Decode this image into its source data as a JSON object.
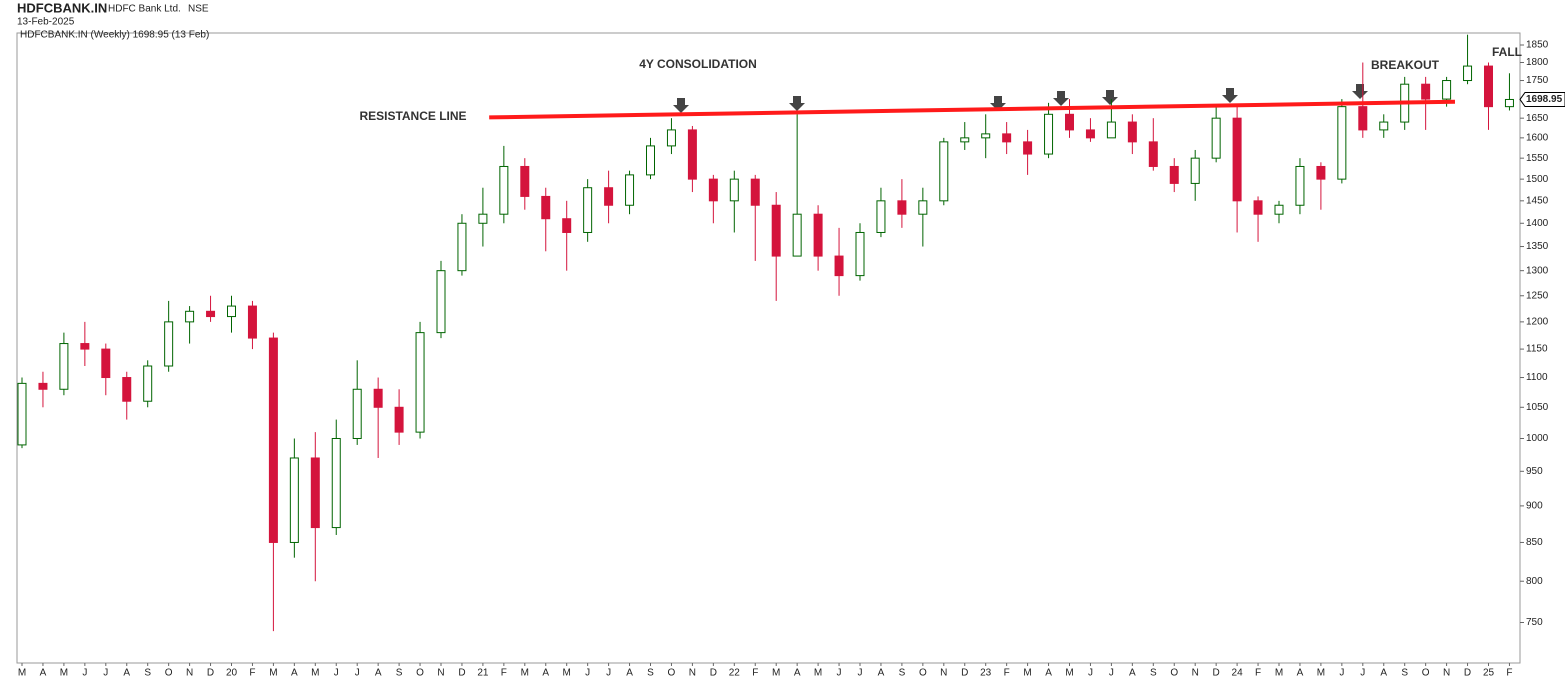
{
  "chart_data": {
    "type": "candlestick",
    "title": "HDFCBANK.IN",
    "company": "HDFC Bank Ltd.",
    "exchange": "NSE",
    "date": "13-Feb-2025",
    "legend": "HDFCBANK.IN (Weekly) 1698.95 (13 Feb)",
    "annotations": [
      "4Y CONSOLIDATION",
      "RESISTANCE LINE",
      "BREAKOUT",
      "FALL"
    ],
    "categories": [
      "M",
      "A",
      "M",
      "J",
      "J",
      "A",
      "S",
      "O",
      "N",
      "D",
      "20",
      "F",
      "M",
      "A",
      "M",
      "J",
      "J",
      "A",
      "S",
      "O",
      "N",
      "D",
      "21",
      "F",
      "M",
      "A",
      "M",
      "J",
      "J",
      "A",
      "S",
      "O",
      "N",
      "D",
      "22",
      "F",
      "M",
      "A",
      "M",
      "J",
      "J",
      "A",
      "S",
      "O",
      "N",
      "D",
      "23",
      "F",
      "M",
      "A",
      "M",
      "J",
      "J",
      "A",
      "S",
      "O",
      "N",
      "D",
      "24",
      "F",
      "M",
      "A",
      "M",
      "J",
      "J",
      "A",
      "S",
      "O",
      "N",
      "D",
      "25",
      "F"
    ],
    "series": {
      "up_color": "#006400",
      "down_color": "#d4143c",
      "open": [
        990,
        1090,
        1080,
        1160,
        1150,
        1100,
        1060,
        1120,
        1200,
        1220,
        1210,
        1230,
        1170,
        850,
        970,
        870,
        1000,
        1080,
        1050,
        1010,
        1180,
        1300,
        1400,
        1420,
        1530,
        1460,
        1410,
        1380,
        1480,
        1440,
        1510,
        1580,
        1620,
        1500,
        1450,
        1500,
        1440,
        1330,
        1420,
        1330,
        1290,
        1380,
        1450,
        1420,
        1450,
        1590,
        1600,
        1610,
        1590,
        1560,
        1660,
        1620,
        1600,
        1640,
        1590,
        1530,
        1490,
        1550,
        1650,
        1450,
        1420,
        1440,
        1530,
        1500,
        1680,
        1620,
        1640,
        1740,
        1700,
        1750,
        1790,
        1680
      ],
      "high": [
        1100,
        1110,
        1180,
        1200,
        1160,
        1110,
        1130,
        1240,
        1230,
        1250,
        1250,
        1240,
        1180,
        1000,
        1010,
        1030,
        1130,
        1100,
        1080,
        1200,
        1320,
        1420,
        1480,
        1580,
        1550,
        1480,
        1450,
        1500,
        1520,
        1520,
        1600,
        1650,
        1630,
        1510,
        1520,
        1510,
        1470,
        1660,
        1440,
        1390,
        1400,
        1480,
        1500,
        1480,
        1600,
        1640,
        1660,
        1640,
        1620,
        1690,
        1700,
        1650,
        1700,
        1660,
        1650,
        1550,
        1570,
        1680,
        1680,
        1460,
        1450,
        1550,
        1540,
        1700,
        1800,
        1660,
        1760,
        1760,
        1760,
        1880,
        1800,
        1770
      ],
      "low": [
        985,
        1050,
        1070,
        1120,
        1070,
        1030,
        1050,
        1110,
        1160,
        1200,
        1180,
        1150,
        740,
        830,
        800,
        860,
        990,
        970,
        990,
        1000,
        1170,
        1290,
        1350,
        1400,
        1430,
        1340,
        1300,
        1360,
        1400,
        1420,
        1500,
        1560,
        1470,
        1400,
        1380,
        1320,
        1240,
        1330,
        1300,
        1250,
        1280,
        1370,
        1390,
        1350,
        1440,
        1570,
        1550,
        1560,
        1510,
        1550,
        1600,
        1590,
        1600,
        1560,
        1520,
        1470,
        1450,
        1540,
        1380,
        1360,
        1400,
        1420,
        1430,
        1490,
        1600,
        1600,
        1620,
        1620,
        1680,
        1740,
        1620,
        1670
      ],
      "close": [
        1090,
        1080,
        1160,
        1150,
        1100,
        1060,
        1120,
        1200,
        1220,
        1210,
        1230,
        1170,
        850,
        970,
        870,
        1000,
        1080,
        1050,
        1010,
        1180,
        1300,
        1400,
        1420,
        1530,
        1460,
        1410,
        1380,
        1480,
        1440,
        1510,
        1580,
        1620,
        1500,
        1450,
        1500,
        1440,
        1330,
        1420,
        1330,
        1290,
        1380,
        1450,
        1420,
        1450,
        1590,
        1600,
        1610,
        1590,
        1560,
        1660,
        1620,
        1600,
        1640,
        1590,
        1530,
        1490,
        1550,
        1650,
        1450,
        1420,
        1440,
        1530,
        1500,
        1680,
        1620,
        1640,
        1740,
        1700,
        1750,
        1790,
        1680,
        1698.95
      ]
    },
    "resistance_line": {
      "color": "#ff1a1a",
      "x": [
        22.3,
        68.4
      ],
      "y": [
        1652,
        1693
      ]
    },
    "last_price": 1698.95,
    "log_scale": true,
    "ylim": [
      704,
      1885
    ],
    "yticks": [
      750,
      800,
      850,
      900,
      950,
      1000,
      1050,
      1100,
      1150,
      1200,
      1250,
      1300,
      1350,
      1400,
      1450,
      1500,
      1550,
      1600,
      1650,
      1700,
      1750,
      1800,
      1850
    ]
  }
}
